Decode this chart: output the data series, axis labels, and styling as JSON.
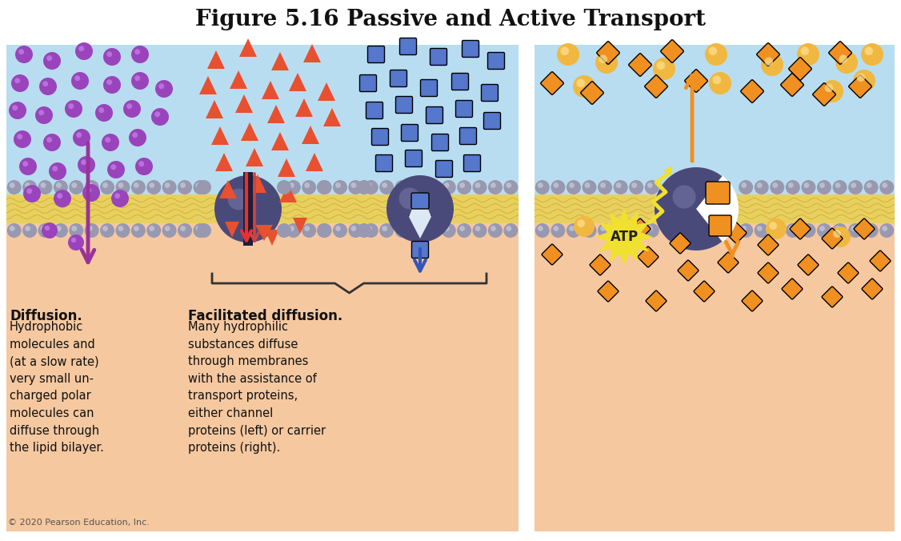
{
  "title": "Figure 5.16 Passive and Active Transport",
  "title_fontsize": 20,
  "bg_color": "#ffffff",
  "blue_bg": "#b8ddf0",
  "peach_bg": "#f5c8a0",
  "membrane_yellow": "#e8d060",
  "membrane_bead": "#9898b0",
  "protein_dark": "#4a4a7a",
  "protein_highlight": "#7a7aaa",
  "purple_mol": "#9944bb",
  "purple_arrow": "#993399",
  "red_mol": "#e85030",
  "red_arrow": "#e04040",
  "blue_mol": "#5577cc",
  "blue_arrow": "#3355bb",
  "orange_mol": "#f09020",
  "orange_arrow": "#f09020",
  "gold_mol": "#f0b840",
  "atp_yellow": "#f0e030",
  "atp_text": "#222222",
  "text_dark": "#111111",
  "copyright_text": "© 2020 Pearson Education, Inc.",
  "diffusion_bold": "Diffusion.",
  "diffusion_body": "Hydrophobic\nmolecules and\n(at a slow rate)\nvery small un-\ncharged polar\nmolecules can\ndiffuse through\nthe lipid bilayer.",
  "facilitated_bold": "Facilitated diffusion.",
  "facilitated_body": "Many hydrophilic\nsubstances diffuse\nthrough membranes\nwith the assistance of\ntransport proteins,\neither channel\nproteins (left) or carrier\nproteins (right)."
}
